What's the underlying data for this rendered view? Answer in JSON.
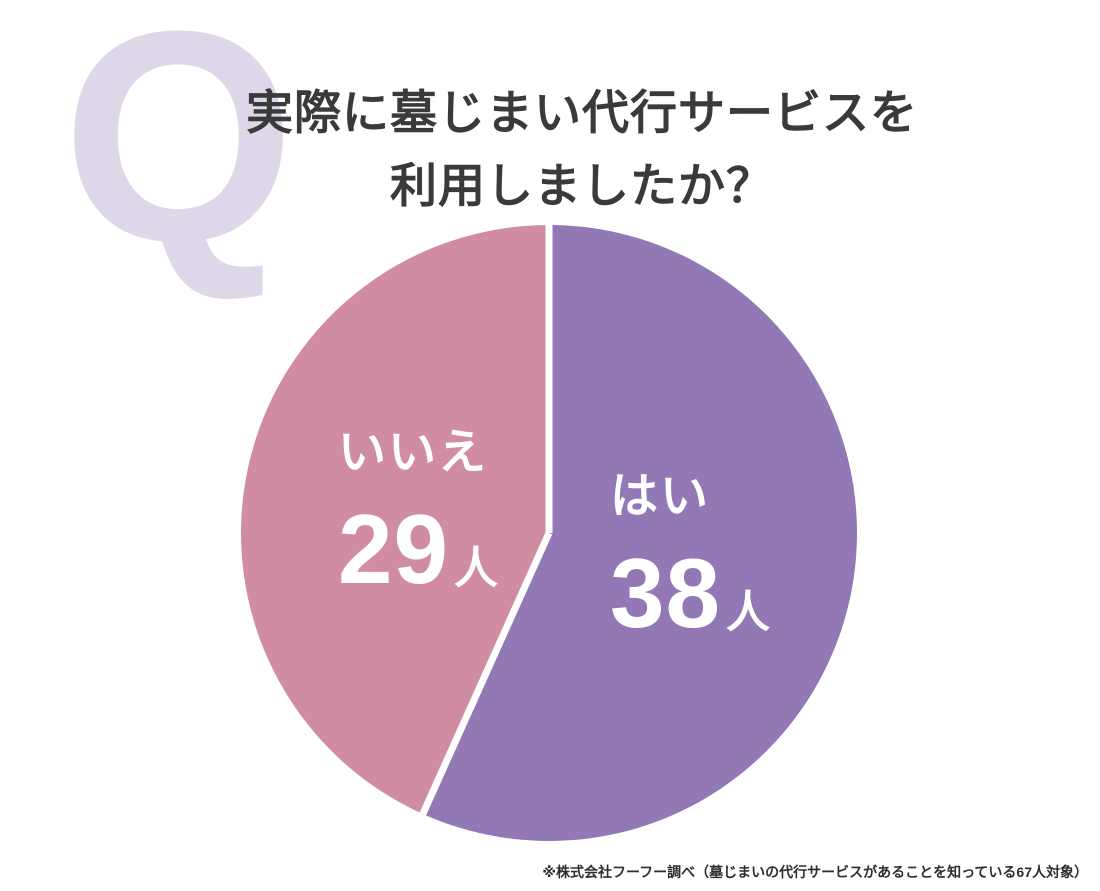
{
  "q_mark": "Q",
  "title": {
    "line1": "実際に墓じまい代行サービスを",
    "line2": "利用しましたか？"
  },
  "chart_data": {
    "type": "pie",
    "title": "実際に墓じまい代行サービスを利用しましたか？",
    "unit": "人",
    "total": 67,
    "start_angle_deg": 0,
    "direction": "clockwise",
    "separator_color": "#ffffff",
    "slices": [
      {
        "key": "yes",
        "label": "はい",
        "value": 38,
        "color": "#9278b4"
      },
      {
        "key": "no",
        "label": "いいえ",
        "value": 29,
        "color": "#d08da2"
      }
    ]
  },
  "footnote": {
    "text": "※株式会社フーフー調べ（墓じまいの代行サービスがあることを知っている67人対象）"
  },
  "colors": {
    "background": "#ffffff",
    "q_mark": "#ddd7e9",
    "title_text": "#3a3a3a",
    "slice_yes": "#9278b4",
    "slice_no": "#d08da2",
    "label_text": "#ffffff",
    "footnote_text": "#2e2e2e"
  }
}
